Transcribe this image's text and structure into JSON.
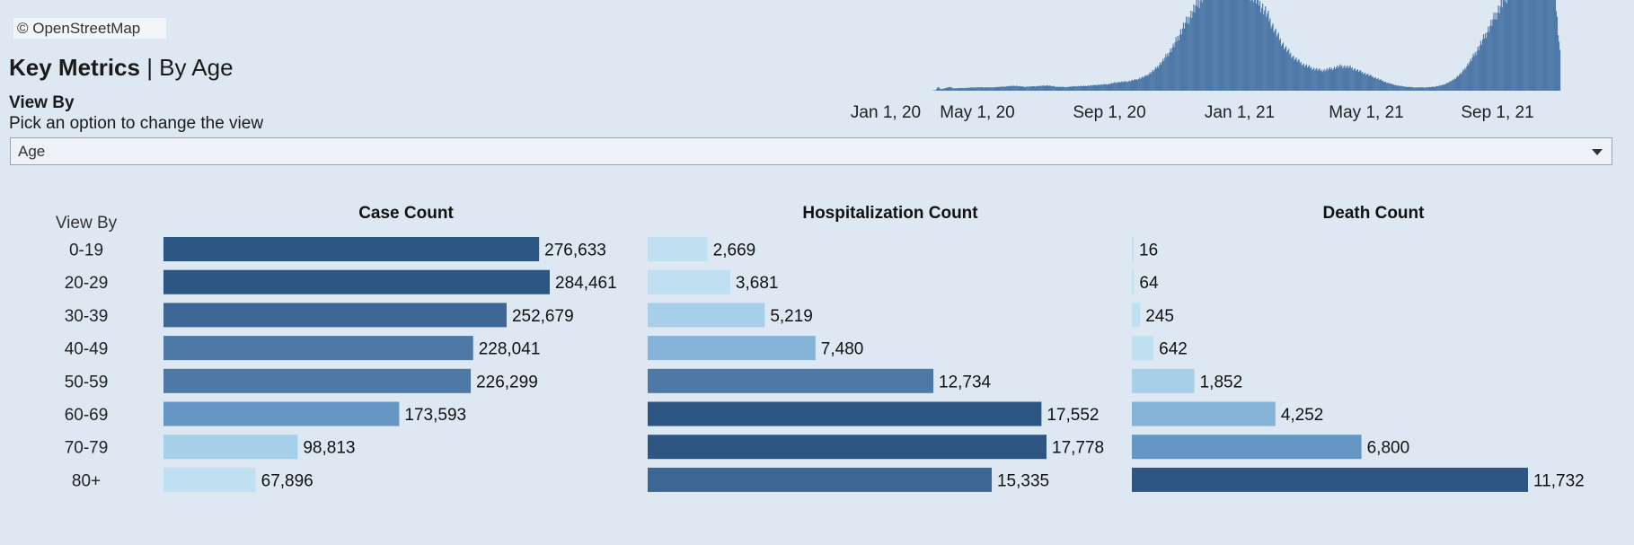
{
  "map_credit": "© OpenStreetMap",
  "title": {
    "main": "Key Metrics",
    "separator": " | ",
    "sub": "By Age"
  },
  "view_by": {
    "label": "View By",
    "hint": "Pick an option to change the view",
    "selected": "Age"
  },
  "colors": {
    "background": "#dde8f2",
    "timeline_bar": "#4e79a7",
    "scale": [
      "#bfe0f1",
      "#a6cfe9",
      "#85b4d8",
      "#6697c4",
      "#4e79a7",
      "#3c6794",
      "#2d5682"
    ]
  },
  "chart_data": [
    {
      "type": "bar",
      "title": "",
      "x": [
        "Jan 1, 20",
        "May 1, 20",
        "Sep 1, 20",
        "Jan 1, 21",
        "May 1, 21",
        "Sep 1, 21"
      ],
      "xlabel": "",
      "ylabel": "",
      "series": [
        {
          "values": [
            [
              0,
              0
            ],
            [
              20,
              2
            ],
            [
              25,
              40
            ],
            [
              28,
              300
            ],
            [
              30,
              120
            ],
            [
              33,
              150
            ],
            [
              40,
              280
            ],
            [
              45,
              180
            ],
            [
              55,
              210
            ],
            [
              70,
              260
            ],
            [
              85,
              250
            ],
            [
              100,
              320
            ],
            [
              110,
              380
            ],
            [
              120,
              300
            ],
            [
              130,
              330
            ],
            [
              145,
              400
            ],
            [
              155,
              300
            ],
            [
              165,
              280
            ],
            [
              175,
              340
            ],
            [
              185,
              360
            ],
            [
              200,
              450
            ],
            [
              210,
              500
            ],
            [
              220,
              650
            ],
            [
              230,
              700
            ],
            [
              240,
              850
            ],
            [
              250,
              1100
            ],
            [
              260,
              1600
            ],
            [
              270,
              2400
            ],
            [
              280,
              3400
            ],
            [
              290,
              4800
            ],
            [
              300,
              6000
            ],
            [
              310,
              7200
            ],
            [
              320,
              8200
            ],
            [
              330,
              8600
            ],
            [
              340,
              8700
            ],
            [
              350,
              8500
            ],
            [
              360,
              7800
            ],
            [
              370,
              7000
            ],
            [
              380,
              6000
            ],
            [
              390,
              4500
            ],
            [
              400,
              3300
            ],
            [
              410,
              2500
            ],
            [
              420,
              2000
            ],
            [
              430,
              1700
            ],
            [
              440,
              1550
            ],
            [
              450,
              1700
            ],
            [
              460,
              1900
            ],
            [
              470,
              1800
            ],
            [
              480,
              1500
            ],
            [
              490,
              1200
            ],
            [
              500,
              900
            ],
            [
              510,
              600
            ],
            [
              520,
              400
            ],
            [
              530,
              300
            ],
            [
              540,
              250
            ],
            [
              550,
              250
            ],
            [
              560,
              300
            ],
            [
              570,
              450
            ],
            [
              580,
              800
            ],
            [
              590,
              1400
            ],
            [
              600,
              2400
            ],
            [
              610,
              3600
            ],
            [
              620,
              5000
            ],
            [
              630,
              6400
            ],
            [
              640,
              7600
            ],
            [
              650,
              8300
            ],
            [
              660,
              8600
            ],
            [
              670,
              8500
            ],
            [
              680,
              8000
            ],
            [
              690,
              7200
            ],
            [
              695,
              3000
            ]
          ]
        }
      ]
    },
    {
      "type": "bar",
      "orientation": "horizontal",
      "row_header": "View By",
      "categories": [
        "0-19",
        "20-29",
        "30-39",
        "40-49",
        "50-59",
        "60-69",
        "70-79",
        "80+"
      ],
      "panels": [
        {
          "title": "Case Count",
          "values": [
            276633,
            284461,
            252679,
            228041,
            226299,
            173593,
            98813,
            67896
          ],
          "labels": [
            "276,633",
            "284,461",
            "252,679",
            "228,041",
            "226,299",
            "173,593",
            "98,813",
            "67,896"
          ]
        },
        {
          "title": "Hospitalization Count",
          "values": [
            2669,
            3681,
            5219,
            7480,
            12734,
            17552,
            17778,
            15335
          ],
          "labels": [
            "2,669",
            "3,681",
            "5,219",
            "7,480",
            "12,734",
            "17,552",
            "17,778",
            "15,335"
          ]
        },
        {
          "title": "Death Count",
          "values": [
            16,
            64,
            245,
            642,
            1852,
            4252,
            6800,
            11732
          ],
          "labels": [
            "16",
            "64",
            "245",
            "642",
            "1,852",
            "4,252",
            "6,800",
            "11,732"
          ]
        }
      ]
    }
  ]
}
